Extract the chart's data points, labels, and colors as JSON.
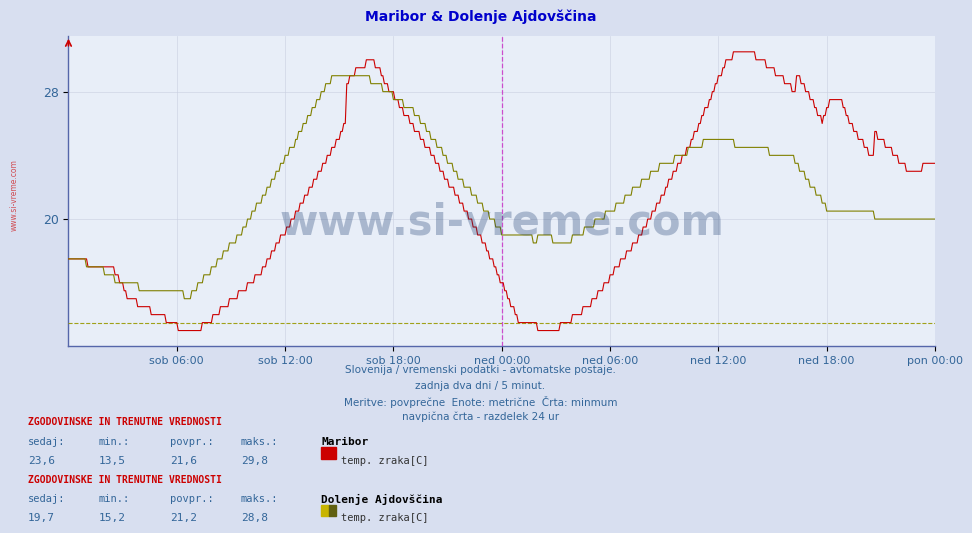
{
  "title": "Maribor & Dolenje Ajdovščina",
  "title_color": "#0000cc",
  "bg_color": "#d8dff0",
  "plot_bg_color": "#e8eef8",
  "grid_color": "#c8cfe0",
  "tick_label_color": "#336699",
  "x_tick_labels": [
    "sob 06:00",
    "sob 12:00",
    "sob 18:00",
    "ned 00:00",
    "ned 06:00",
    "ned 12:00",
    "ned 18:00",
    "pon 00:00"
  ],
  "x_tick_positions": [
    72,
    144,
    216,
    288,
    360,
    432,
    504,
    576
  ],
  "y_ticks": [
    20,
    28
  ],
  "ylim_min": 12.0,
  "ylim_max": 31.5,
  "maribor_color": "#cc0000",
  "ajdov_color": "#808000",
  "min_line_color": "#999900",
  "min_line_value": 13.5,
  "vertical_line_x": 288,
  "vertical_line_color": "#cc44cc",
  "subtitle_line1": "Slovenija / vremenski podatki - avtomatske postaje.",
  "subtitle_line2": "zadnja dva dni / 5 minut.",
  "subtitle_line3": "Meritve: povprečne  Enote: metrične  Črta: minmum",
  "subtitle_line4": "navpična črta - razdelek 24 ur",
  "subtitle_color": "#336699",
  "legend1_title": "ZGODOVINSKE IN TRENUTNE VREDNOSTI",
  "legend1_station": "Maribor",
  "legend1_sedaj": "23,6",
  "legend1_min": "13,5",
  "legend1_povpr": "21,6",
  "legend1_maks": "29,8",
  "legend1_label": "temp. zraka[C]",
  "legend2_title": "ZGODOVINSKE IN TRENUTNE VREDNOSTI",
  "legend2_station": "Dolenje Ajdovščina",
  "legend2_sedaj": "19,7",
  "legend2_min": "15,2",
  "legend2_povpr": "21,2",
  "legend2_maks": "28,8",
  "legend2_label": "temp. zraka[C]",
  "total_points": 577,
  "watermark": "www.si-vreme.com",
  "watermark_color": "#1a3a6e",
  "watermark_alpha": 0.3
}
